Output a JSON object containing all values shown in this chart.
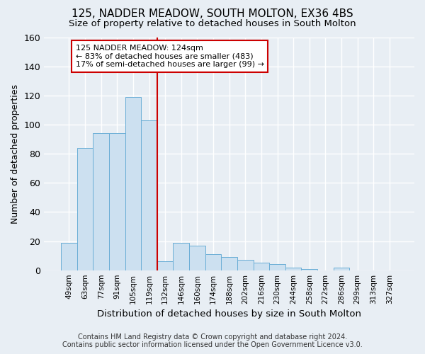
{
  "title": "125, NADDER MEADOW, SOUTH MOLTON, EX36 4BS",
  "subtitle": "Size of property relative to detached houses in South Molton",
  "xlabel": "Distribution of detached houses by size in South Molton",
  "ylabel": "Number of detached properties",
  "bar_labels": [
    "49sqm",
    "63sqm",
    "77sqm",
    "91sqm",
    "105sqm",
    "119sqm",
    "132sqm",
    "146sqm",
    "160sqm",
    "174sqm",
    "188sqm",
    "202sqm",
    "216sqm",
    "230sqm",
    "244sqm",
    "258sqm",
    "272sqm",
    "286sqm",
    "299sqm",
    "313sqm",
    "327sqm"
  ],
  "bar_values": [
    19,
    84,
    94,
    94,
    119,
    103,
    6,
    19,
    17,
    11,
    9,
    7,
    5,
    4,
    2,
    1,
    0,
    2,
    0,
    0,
    0
  ],
  "bar_color": "#cce0f0",
  "bar_edge_color": "#6aaed6",
  "vline_x": 5.5,
  "vline_color": "#cc0000",
  "annotation_text": "125 NADDER MEADOW: 124sqm\n← 83% of detached houses are smaller (483)\n17% of semi-detached houses are larger (99) →",
  "annotation_box_color": "#ffffff",
  "annotation_box_edge": "#cc0000",
  "ylim": [
    0,
    160
  ],
  "yticks": [
    0,
    20,
    40,
    60,
    80,
    100,
    120,
    140,
    160
  ],
  "background_color": "#e8eef4",
  "grid_color": "#ffffff",
  "title_fontsize": 11,
  "subtitle_fontsize": 9.5,
  "footer_text": "Contains HM Land Registry data © Crown copyright and database right 2024.\nContains public sector information licensed under the Open Government Licence v3.0.",
  "footer_fontsize": 7.0
}
